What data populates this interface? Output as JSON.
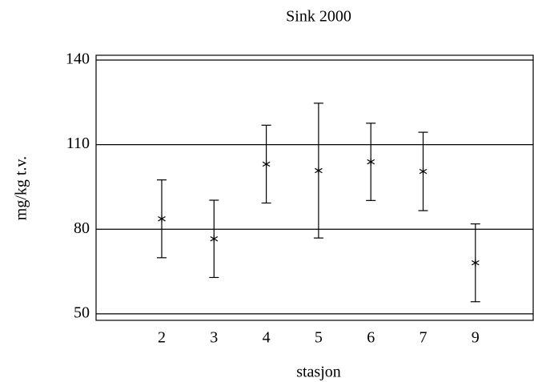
{
  "chart_data": {
    "type": "errorbar",
    "title": "Sink 2000",
    "x_label": "stasjon",
    "y_label": "mg/kg t.v.",
    "categories": [
      "2",
      "3",
      "4",
      "5",
      "6",
      "7",
      "9"
    ],
    "values": [
      83.7,
      76.6,
      103.1,
      100.8,
      103.9,
      100.5,
      68.1
    ],
    "errors": [
      13.8,
      13.7,
      13.8,
      23.9,
      13.7,
      13.9,
      13.8
    ],
    "color": "#000000",
    "ylim": [
      47.7,
      141.7
    ],
    "yticks": [
      50,
      80,
      110,
      140
    ],
    "grid": true
  }
}
